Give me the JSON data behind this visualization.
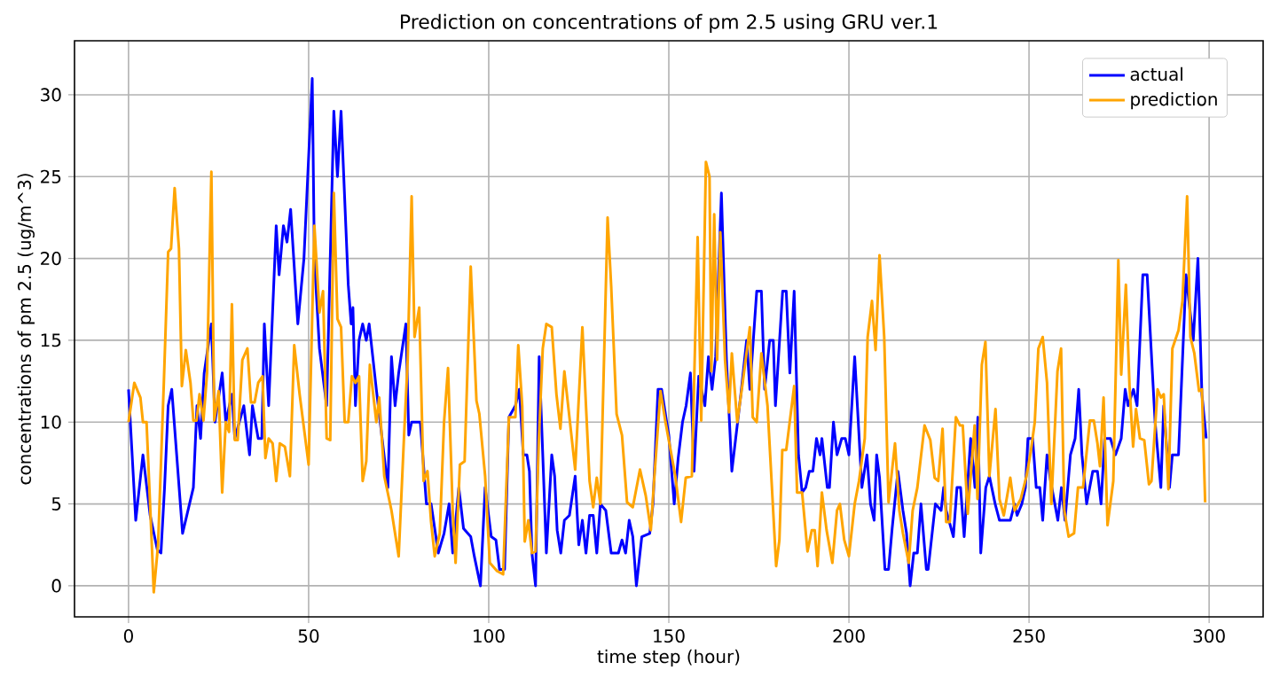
{
  "chart_data": {
    "type": "line",
    "title": "Prediction on concentrations of pm 2.5 using GRU ver.1",
    "xlabel": "time step (hour)",
    "ylabel": "concentrations of pm 2.5 (ug/m^3)",
    "xlim": [
      -15,
      315
    ],
    "ylim": [
      -1.9,
      33.3
    ],
    "xticks": [
      0,
      50,
      100,
      150,
      200,
      250,
      300
    ],
    "yticks": [
      0,
      5,
      10,
      15,
      20,
      25,
      30
    ],
    "grid": true,
    "legend": "top right",
    "line_style": "solid",
    "marker": "none",
    "series": [
      {
        "name": "actual",
        "color": "#0000ff",
        "x": [
          0,
          2,
          4,
          6,
          8,
          9,
          10,
          11,
          12,
          15,
          18,
          19,
          20,
          21,
          23,
          24,
          26,
          27,
          28.7,
          29.5,
          32,
          33.6,
          34.4,
          36,
          37,
          37.7,
          38.9,
          41,
          41.8,
          43,
          44,
          45,
          47,
          48.7,
          51,
          51.6,
          53,
          55,
          57,
          58,
          59,
          61,
          61.8,
          62.3,
          63,
          64,
          65,
          66,
          66.8,
          68.8,
          72,
          73,
          74,
          75,
          77,
          77.8,
          78.6,
          81,
          82.7,
          84,
          86,
          87.6,
          89,
          90,
          91.7,
          93,
          95,
          96,
          97.7,
          99,
          100.7,
          102,
          103,
          104.4,
          105.6,
          107.4,
          108.5,
          109.6,
          110.6,
          111.3,
          112,
          113,
          114,
          116,
          117.5,
          118.3,
          119,
          120,
          121,
          122.4,
          124,
          125,
          126,
          127,
          128,
          129,
          130,
          131,
          132.5,
          134,
          136,
          137,
          138,
          139,
          140,
          141,
          142.5,
          144.7,
          145.6,
          147,
          148,
          149.4,
          150,
          151.5,
          152.6,
          153.8,
          154.8,
          156,
          157,
          158.3,
          160,
          161,
          162,
          163,
          164.6,
          166,
          167.5,
          170,
          171.6,
          172.5,
          174.4,
          175.7,
          176.6,
          178,
          179,
          179.6,
          181.6,
          182.6,
          183.6,
          184.8,
          186,
          187,
          188,
          189,
          190,
          191,
          192,
          192.5,
          194,
          194.6,
          195.7,
          196.7,
          198,
          199,
          200,
          201.6,
          203.6,
          205,
          206,
          207,
          207.7,
          208.5,
          210,
          211,
          212,
          213.6,
          215,
          216,
          217,
          218,
          219,
          220,
          221.5,
          222,
          224,
          225.6,
          226.3,
          227,
          229,
          230,
          231,
          232,
          233.8,
          235,
          235.8,
          236.6,
          238,
          239,
          240.6,
          241.8,
          243,
          244.8,
          246,
          246.7,
          248,
          249,
          249.7,
          251,
          252,
          253,
          253.8,
          255,
          256,
          258,
          259,
          260,
          261.5,
          262.8,
          263.8,
          264.7,
          266,
          267.7,
          269,
          270,
          271,
          272.6,
          274,
          275.6,
          276.7,
          277.5,
          279,
          280,
          281.6,
          282.8,
          285,
          286.6,
          287.4,
          289,
          289.8,
          291.5,
          293.6,
          295.6,
          296.9,
          298,
          299.2
        ],
        "values": [
          12,
          4,
          8,
          4.3,
          2.2,
          2,
          6,
          11,
          12,
          3.2,
          6,
          11,
          9,
          13,
          16,
          10,
          13,
          10,
          11.7,
          9,
          11,
          8,
          11,
          9,
          9,
          16,
          11,
          22,
          19,
          22,
          21,
          23,
          16,
          20,
          31,
          20,
          14.5,
          11,
          29,
          25,
          29,
          18.4,
          16,
          17,
          11,
          15,
          16,
          15,
          16,
          12,
          6,
          14,
          11,
          13,
          16,
          9.2,
          10,
          10,
          5,
          5,
          2,
          3.2,
          5,
          2,
          6,
          3.5,
          3,
          1.8,
          0,
          6,
          3,
          2.8,
          1,
          1,
          10.3,
          11,
          12,
          8,
          8,
          7,
          2,
          0,
          14,
          2,
          8,
          6.7,
          3.4,
          2,
          4,
          4.3,
          6.7,
          2.5,
          4,
          2,
          4.3,
          4.3,
          2,
          5,
          4.6,
          2,
          2,
          2.8,
          2,
          4,
          3,
          0,
          3,
          3.2,
          5,
          12,
          12,
          10,
          9.2,
          5,
          7.8,
          10,
          11,
          13,
          7,
          12.8,
          11,
          14,
          12,
          14,
          24,
          13.8,
          7,
          11.7,
          15,
          12,
          18,
          18,
          12,
          15,
          15,
          11,
          18,
          18,
          13,
          18,
          8,
          5.7,
          6,
          7,
          7,
          9,
          8,
          9,
          6,
          6,
          10,
          8,
          9,
          9,
          8,
          14,
          6,
          8,
          5,
          4,
          8,
          6.6,
          1,
          1,
          3.5,
          7,
          4.6,
          3.2,
          0,
          2,
          2,
          5,
          1,
          1,
          5,
          4.6,
          6,
          4.6,
          3,
          6,
          6,
          3,
          9,
          6,
          10.3,
          2,
          6,
          6.7,
          5,
          4,
          4,
          4,
          5,
          4.3,
          5,
          6,
          9,
          9,
          6,
          6,
          4,
          8,
          6.4,
          4,
          6,
          4,
          8,
          9,
          12,
          8,
          5,
          7,
          7,
          5,
          9,
          9,
          8,
          9,
          12,
          11,
          12,
          11,
          19,
          19,
          10,
          6,
          11,
          6,
          8,
          8,
          19,
          15,
          20,
          11.7,
          9
        ]
      },
      {
        "name": "prediction",
        "color": "#ffa500",
        "x": [
          0,
          1.6,
          3.3,
          4,
          5,
          6.6,
          7,
          8.2,
          9.8,
          11,
          11.8,
          12.8,
          14,
          14.8,
          15.9,
          17.2,
          18,
          18.9,
          19.7,
          20.8,
          21.8,
          23,
          23.8,
          25,
          26,
          27,
          27.9,
          28.7,
          29.5,
          30.3,
          31.6,
          33,
          34,
          35,
          36,
          37.2,
          38,
          38.9,
          40,
          41,
          42,
          43.4,
          44.8,
          46,
          47.5,
          50,
          51.6,
          53,
          54,
          55,
          56,
          57,
          58,
          59,
          60,
          61,
          62,
          63,
          64,
          65,
          66,
          67,
          68.8,
          69.6,
          71,
          73,
          75,
          76.5,
          77.5,
          78.6,
          79.4,
          80.7,
          81.9,
          83,
          84,
          85,
          86.4,
          87.6,
          88.7,
          90,
          90.8,
          92,
          93.3,
          95,
          96.6,
          97.4,
          99,
          100.3,
          102.3,
          104,
          105.6,
          107.4,
          108.2,
          109.3,
          110,
          111,
          112,
          113,
          113.9,
          115,
          116,
          117.5,
          118.8,
          119.9,
          121,
          122.4,
          124,
          126,
          127,
          128,
          129,
          130,
          131,
          133,
          134,
          135.5,
          137,
          138.4,
          140,
          142,
          143.6,
          145,
          146,
          147.7,
          149,
          151.8,
          153.4,
          154.7,
          156.4,
          158,
          159,
          160.3,
          161.3,
          161.8,
          162.6,
          163.4,
          164.3,
          165.6,
          166.7,
          167.5,
          169,
          170.5,
          172.5,
          173.3,
          174.4,
          175.7,
          177.4,
          179.8,
          180.7,
          181.5,
          182.6,
          184.8,
          185.6,
          187,
          188.5,
          189.7,
          190.5,
          191.3,
          192.5,
          193.8,
          195.4,
          196.7,
          197.5,
          198.7,
          200,
          201.6,
          202.8,
          204.4,
          205.2,
          206.4,
          207.4,
          208.5,
          209.8,
          211,
          212.8,
          214,
          215,
          216.6,
          217.7,
          219,
          221,
          222.6,
          223.8,
          224.8,
          226,
          227,
          228,
          229.7,
          230.8,
          231.6,
          233,
          234.9,
          235.7,
          236.9,
          237.9,
          239,
          240.7,
          241.8,
          243,
          244.8,
          246,
          247.7,
          249.3,
          250.5,
          251.6,
          252.6,
          253.8,
          255,
          256.2,
          257.9,
          258.9,
          259.8,
          261,
          262.5,
          263.6,
          265,
          266.9,
          268,
          269,
          269.7,
          270.7,
          271.8,
          273.4,
          274.8,
          275.6,
          276.9,
          277.9,
          278.9,
          279.7,
          280.8,
          282,
          283.3,
          284,
          285.7,
          286.6,
          287.4,
          288.7,
          289.8,
          291.5,
          292.6,
          293.9,
          294.8,
          295.9,
          297.2,
          298,
          298.9
        ],
        "values": [
          10,
          12.4,
          11.5,
          10,
          10,
          1.8,
          -0.4,
          2.5,
          12.4,
          20.4,
          20.6,
          24.3,
          20.6,
          12.2,
          14.4,
          12.4,
          10.1,
          10.1,
          11.7,
          10.1,
          13,
          25.3,
          10.1,
          11.9,
          5.7,
          10,
          9.4,
          17.2,
          8.9,
          8.9,
          13.8,
          14.5,
          11.2,
          11.2,
          12.4,
          12.8,
          7.8,
          9,
          8.7,
          6.4,
          8.7,
          8.5,
          6.7,
          14.7,
          11.7,
          7.4,
          22,
          16.7,
          18,
          9,
          8.9,
          24,
          16.3,
          15.8,
          10,
          10,
          12.8,
          12.4,
          12.8,
          6.4,
          7.6,
          13.5,
          10,
          11.5,
          6.7,
          4.6,
          1.8,
          9.2,
          13.8,
          23.8,
          15.2,
          17,
          6.4,
          7,
          3.9,
          1.8,
          3.2,
          10,
          13.3,
          4.6,
          1.4,
          7.4,
          7.6,
          19.5,
          11.3,
          10.5,
          6.7,
          1.4,
          0.9,
          0.7,
          10.3,
          10.3,
          14.7,
          11,
          2.7,
          4,
          2,
          2.1,
          8.9,
          14.5,
          16,
          15.8,
          11.7,
          9.6,
          13.1,
          10.3,
          7.1,
          15.8,
          11,
          6.4,
          4.8,
          6.6,
          5,
          22.5,
          18.3,
          10.5,
          9.2,
          5.1,
          4.8,
          7.1,
          5.5,
          3.4,
          6.7,
          11.9,
          10.1,
          6.7,
          3.9,
          6.6,
          6.7,
          21.3,
          10.1,
          25.9,
          25,
          13.1,
          22.7,
          13.8,
          21.6,
          13.8,
          10.6,
          14.2,
          10,
          12.4,
          15.8,
          10.3,
          10,
          14.2,
          11,
          1.2,
          2.8,
          8.3,
          8.3,
          12.2,
          5.7,
          5.7,
          2.1,
          3.4,
          3.4,
          1.2,
          5.7,
          3.4,
          1.4,
          4.6,
          5,
          2.8,
          1.8,
          5,
          6.4,
          9,
          15.2,
          17.4,
          14.4,
          20.2,
          15.2,
          5.1,
          8.7,
          4.6,
          3.2,
          1.4,
          4.6,
          6,
          9.8,
          8.9,
          6.6,
          6.4,
          9.6,
          3.9,
          3.9,
          10.3,
          9.8,
          9.8,
          4.4,
          9.8,
          5.3,
          13.5,
          14.9,
          6.7,
          10.8,
          5.3,
          4.3,
          6.6,
          4.6,
          5.3,
          6.7,
          8.2,
          10,
          14.5,
          15.2,
          12.4,
          5,
          13.1,
          14.5,
          4.6,
          3,
          3.2,
          6,
          6,
          10.1,
          10.1,
          8.7,
          7.3,
          11.5,
          3.7,
          6.4,
          19.9,
          12.9,
          18.4,
          12.2,
          8.5,
          10.8,
          9,
          8.9,
          6.2,
          6.4,
          12,
          11.5,
          11.7,
          5.9,
          14.5,
          15.6,
          17.4,
          23.8,
          15.2,
          14.2,
          11.9,
          12,
          5.1
        ]
      }
    ]
  }
}
